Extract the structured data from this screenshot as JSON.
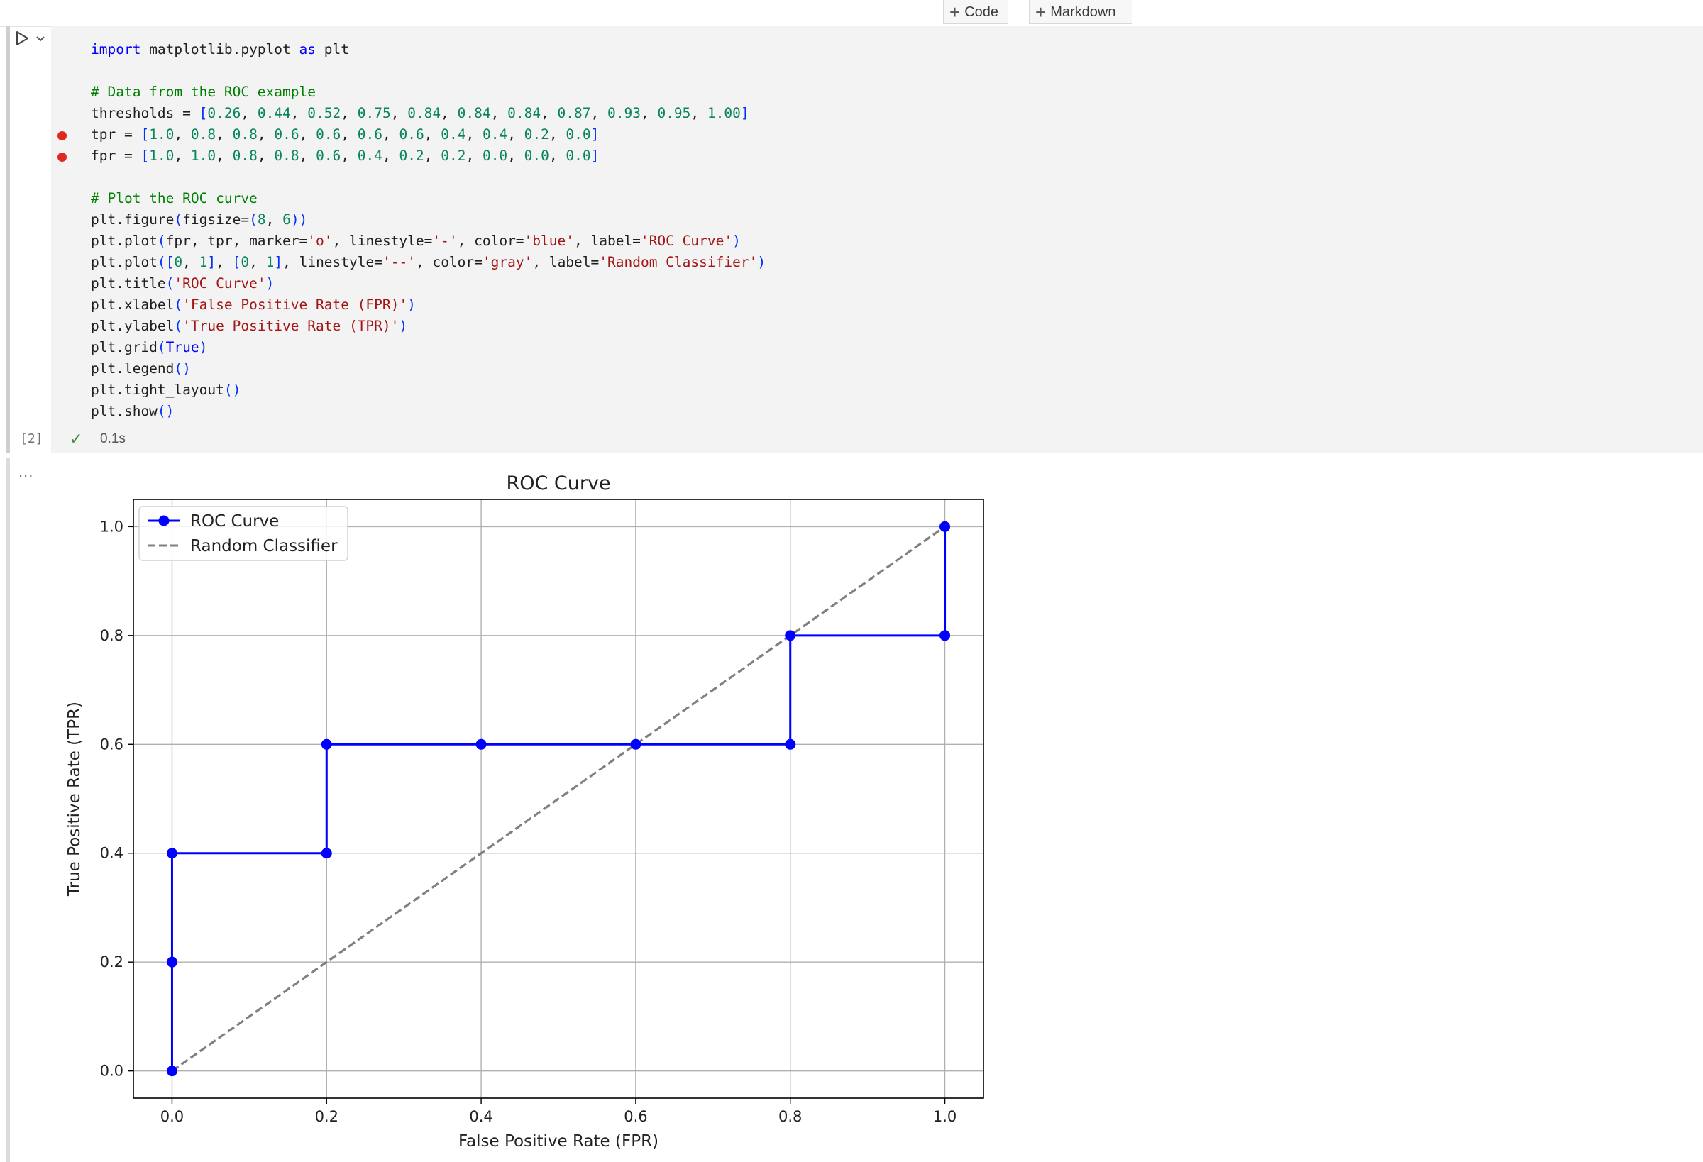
{
  "toolbar": {
    "add_code_label": "Code",
    "add_markdown_label": "Markdown"
  },
  "cell": {
    "execution_count": "[2]",
    "exec_time": "0.1s",
    "output_menu": "..."
  },
  "chart_data": {
    "type": "line",
    "title": "ROC Curve",
    "xlabel": "False Positive Rate (FPR)",
    "ylabel": "True Positive Rate (TPR)",
    "xlim": [
      -0.05,
      1.05
    ],
    "ylim": [
      -0.05,
      1.05
    ],
    "xticks": [
      "0.0",
      "0.2",
      "0.4",
      "0.6",
      "0.8",
      "1.0"
    ],
    "yticks": [
      "0.0",
      "0.2",
      "0.4",
      "0.6",
      "0.8",
      "1.0"
    ],
    "grid": true,
    "legend_position": "top-left",
    "series": [
      {
        "name": "ROC Curve",
        "color": "#0000ff",
        "marker": "o",
        "linestyle": "solid",
        "x": [
          1.0,
          1.0,
          0.8,
          0.8,
          0.6,
          0.4,
          0.2,
          0.2,
          0.0,
          0.0,
          0.0
        ],
        "y": [
          1.0,
          0.8,
          0.8,
          0.6,
          0.6,
          0.6,
          0.6,
          0.4,
          0.4,
          0.2,
          0.0
        ]
      },
      {
        "name": "Random Classifier",
        "color": "#808080",
        "marker": "",
        "linestyle": "dashed",
        "x": [
          0,
          1
        ],
        "y": [
          0,
          1
        ]
      }
    ]
  }
}
